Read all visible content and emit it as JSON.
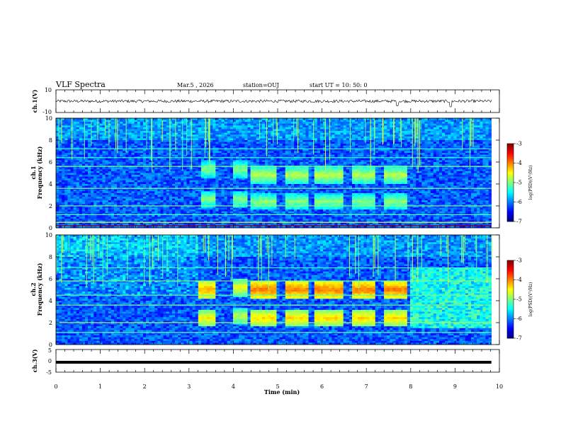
{
  "header": {
    "title": "VLF Spectra",
    "date": "Mar.5  , 2026",
    "station": "station=OUJ",
    "start": "start  UT  =   10: 50: 0"
  },
  "chart_data": [
    {
      "type": "line",
      "name": "ch1-waveform",
      "ylabel": "ch.1(V)",
      "ylim": [
        -10,
        10
      ],
      "yticks": [
        "10",
        "-10"
      ],
      "xlim": [
        0,
        10
      ],
      "trace_level": 0,
      "trace_spread": 2.5,
      "spikes": [
        {
          "x": 7.7,
          "y": -4
        },
        {
          "x": 8.9,
          "y": -5
        }
      ]
    },
    {
      "type": "heatmap",
      "name": "ch1-spectrogram",
      "ylabel": "ch.1\nFrequency  (kHz)",
      "ylim": [
        0,
        10
      ],
      "yticks": [
        "0",
        "2",
        "4",
        "6",
        "8",
        "10"
      ],
      "xlim": [
        0,
        10
      ],
      "colorbar": {
        "label": "log(PSD)(V²/Hz)",
        "range": [
          -7,
          -3
        ],
        "ticks": [
          "-3",
          "-4",
          "-5",
          "-6",
          "-7"
        ]
      },
      "bursts": [
        {
          "x0": 3.3,
          "x1": 3.6,
          "f_center": 5.3,
          "level": -4.8
        },
        {
          "x0": 4.0,
          "x1": 4.3,
          "f_center": 5.3,
          "level": -4.8
        },
        {
          "x0": 4.4,
          "x1": 5.0,
          "f_center": 4.8,
          "level": -4.6
        },
        {
          "x0": 5.2,
          "x1": 5.7,
          "f_center": 4.8,
          "level": -4.6
        },
        {
          "x0": 5.8,
          "x1": 6.5,
          "f_center": 4.8,
          "level": -4.6
        },
        {
          "x0": 6.7,
          "x1": 7.2,
          "f_center": 4.8,
          "level": -4.6
        },
        {
          "x0": 7.4,
          "x1": 7.9,
          "f_center": 4.8,
          "level": -4.6
        },
        {
          "x0": 3.3,
          "x1": 3.6,
          "f_center": 2.6,
          "level": -4.8
        },
        {
          "x0": 4.0,
          "x1": 4.3,
          "f_center": 2.6,
          "level": -4.8
        },
        {
          "x0": 4.4,
          "x1": 5.0,
          "f_center": 2.4,
          "level": -4.8
        },
        {
          "x0": 5.2,
          "x1": 5.7,
          "f_center": 2.4,
          "level": -4.8
        },
        {
          "x0": 5.8,
          "x1": 6.5,
          "f_center": 2.4,
          "level": -4.8
        },
        {
          "x0": 6.7,
          "x1": 7.2,
          "f_center": 2.4,
          "level": -4.8
        },
        {
          "x0": 7.4,
          "x1": 7.9,
          "f_center": 2.4,
          "level": -4.8
        }
      ],
      "lines": [
        {
          "f": 0.2,
          "level": -3.1
        },
        {
          "f": 0.5,
          "level": -4.5
        },
        {
          "f": 1.2,
          "level": -5.2
        },
        {
          "f": 2.0,
          "level": -5.0
        },
        {
          "f": 3.6,
          "level": -5.0
        },
        {
          "f": 5.6,
          "level": -5.0
        },
        {
          "f": 6.4,
          "level": -5.3
        },
        {
          "f": 7.2,
          "level": -5.4
        }
      ]
    },
    {
      "type": "heatmap",
      "name": "ch2-spectrogram",
      "ylabel": "ch.2\nFrequency  (kHz)",
      "ylim": [
        0,
        10
      ],
      "yticks": [
        "0",
        "2",
        "4",
        "6",
        "8",
        "10"
      ],
      "xlim": [
        0,
        10
      ],
      "colorbar": {
        "label": "log(PSD)(V²/Hz)",
        "range": [
          -7,
          -3
        ],
        "ticks": [
          "-3",
          "-4",
          "-5",
          "-6",
          "-7"
        ]
      },
      "bursts": [
        {
          "x0": 3.2,
          "x1": 3.6,
          "f_center": 5.0,
          "level": -4.0
        },
        {
          "x0": 4.0,
          "x1": 4.3,
          "f_center": 5.2,
          "level": -4.4
        },
        {
          "x0": 4.4,
          "x1": 5.0,
          "f_center": 5.0,
          "level": -3.8
        },
        {
          "x0": 5.2,
          "x1": 5.7,
          "f_center": 5.0,
          "level": -3.8
        },
        {
          "x0": 5.8,
          "x1": 6.5,
          "f_center": 5.0,
          "level": -3.8
        },
        {
          "x0": 6.7,
          "x1": 7.2,
          "f_center": 5.0,
          "level": -3.8
        },
        {
          "x0": 7.4,
          "x1": 7.9,
          "f_center": 5.0,
          "level": -3.8
        },
        {
          "x0": 3.2,
          "x1": 3.6,
          "f_center": 2.4,
          "level": -4.3
        },
        {
          "x0": 4.0,
          "x1": 4.3,
          "f_center": 2.6,
          "level": -4.6
        },
        {
          "x0": 4.4,
          "x1": 5.0,
          "f_center": 2.4,
          "level": -4.2
        },
        {
          "x0": 5.2,
          "x1": 5.7,
          "f_center": 2.4,
          "level": -4.2
        },
        {
          "x0": 5.8,
          "x1": 6.5,
          "f_center": 2.4,
          "level": -4.2
        },
        {
          "x0": 6.7,
          "x1": 7.2,
          "f_center": 2.4,
          "level": -4.2
        },
        {
          "x0": 7.4,
          "x1": 7.9,
          "f_center": 2.4,
          "level": -4.2
        }
      ],
      "lines": [
        {
          "f": 1.1,
          "level": -5.1
        },
        {
          "f": 2.0,
          "level": -4.8
        },
        {
          "f": 3.6,
          "level": -5.0
        },
        {
          "f": 4.5,
          "level": -5.1
        },
        {
          "f": 5.8,
          "level": -5.0
        },
        {
          "f": 7.0,
          "level": -5.3
        }
      ]
    },
    {
      "type": "line",
      "name": "ch3-waveform",
      "ylabel": "ch.3(V)",
      "xlabel": "Time  (min)",
      "ylim": [
        -5,
        5
      ],
      "yticks": [
        "5",
        "0",
        "-5"
      ],
      "xlim": [
        0,
        10
      ],
      "xticks": [
        "0",
        "1",
        "2",
        "3",
        "4",
        "5",
        "6",
        "7",
        "8",
        "9",
        "10"
      ],
      "trace_level": -0.7
    }
  ]
}
